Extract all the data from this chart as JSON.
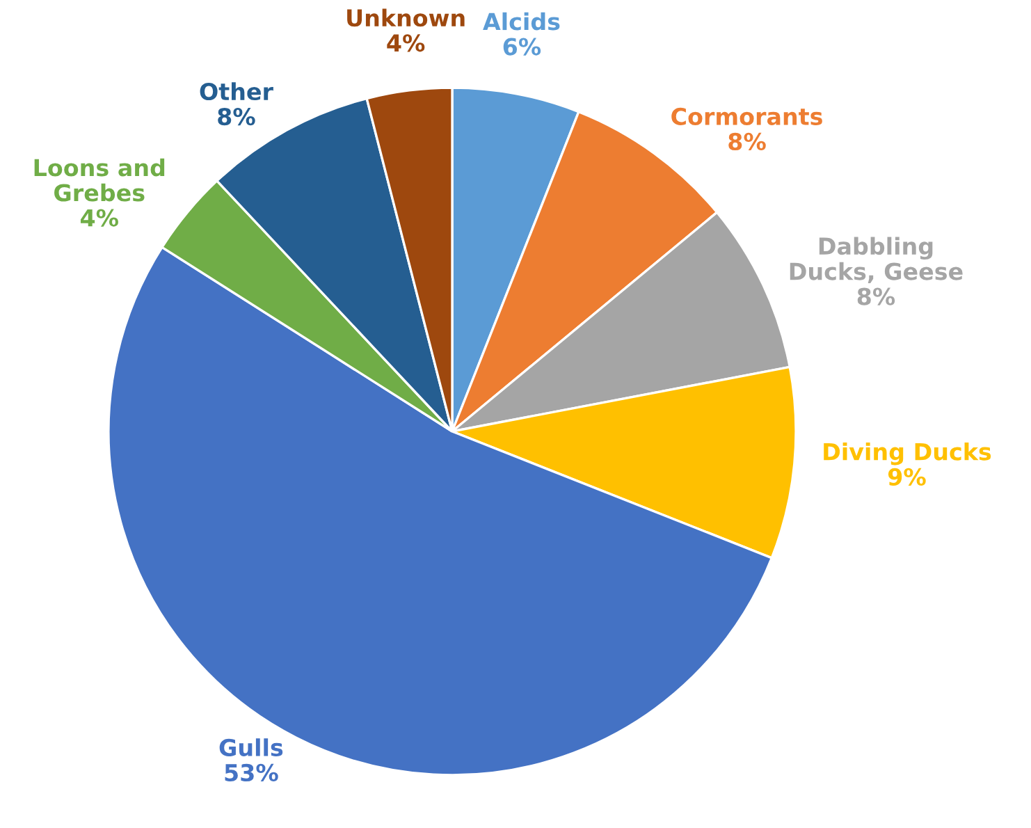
{
  "chart_data": {
    "type": "pie",
    "categories": [
      "Alcids",
      "Cormorants",
      "Dabbling\nDucks, Geese",
      "Diving Ducks",
      "Gulls",
      "Loons and\nGrebes",
      "Other",
      "Unknown"
    ],
    "values": [
      6,
      8,
      8,
      9,
      53,
      4,
      8,
      4
    ],
    "value_labels": [
      "6%",
      "8%",
      "8%",
      "9%",
      "53%",
      "4%",
      "8%",
      "4%"
    ],
    "colors": [
      "#5b9bd5",
      "#ed7d31",
      "#a5a5a5",
      "#ffc000",
      "#4472c4",
      "#70ad47",
      "#255e91",
      "#9e480e"
    ]
  }
}
